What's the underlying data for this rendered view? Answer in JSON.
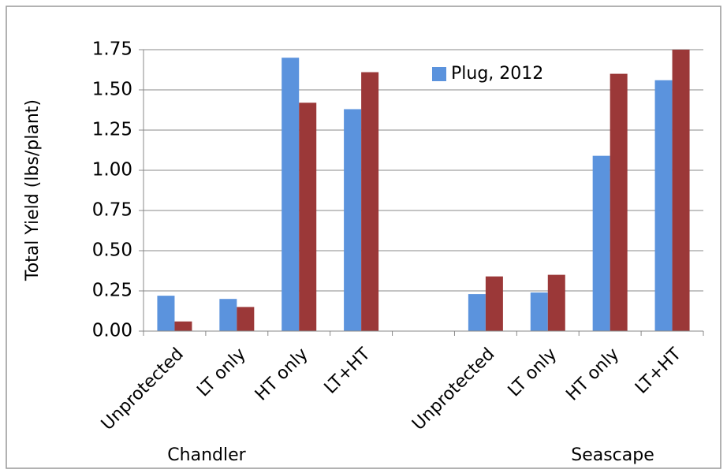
{
  "chart_data": {
    "type": "bar",
    "y_label": "Total Yield (lbs/plant)",
    "categories": [
      "Unprotected",
      "LT only",
      "HT only",
      "LT+HT",
      null,
      "Unprotected",
      "LT only",
      "HT only",
      "LT+HT"
    ],
    "group_labels": [
      "Chandler",
      "Seascape"
    ],
    "series": [
      {
        "name": "Plug, 2012",
        "color": "#5b93dd",
        "values": [
          0.22,
          0.2,
          1.7,
          1.38,
          null,
          0.23,
          0.24,
          1.09,
          1.56
        ]
      },
      {
        "color": "#9b3838",
        "values": [
          0.06,
          0.15,
          1.42,
          1.61,
          null,
          0.34,
          0.35,
          1.6,
          1.75
        ]
      }
    ],
    "ylim": [
      0,
      1.75
    ],
    "yticks": [
      {
        "value": 0,
        "label": "0.00"
      },
      0.25,
      {
        "value": 0.5,
        "label": "0.50"
      },
      0.75,
      {
        "value": 1,
        "label": "1.00"
      },
      1.25,
      {
        "value": 1.5,
        "label": "1.50"
      },
      1.75
    ],
    "grid": true
  }
}
